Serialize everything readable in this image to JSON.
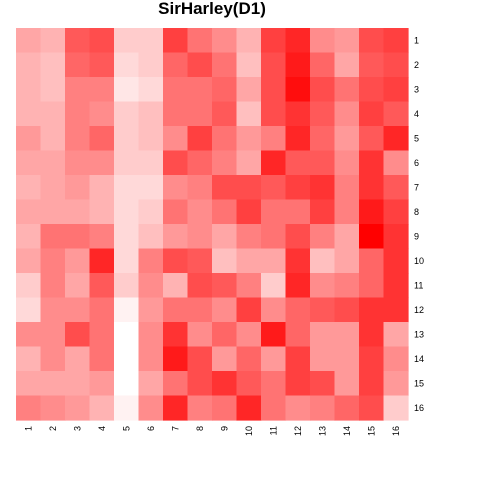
{
  "chart_data": {
    "type": "heatmap",
    "title": "SirHarley(D1)",
    "rows": [
      "1",
      "2",
      "3",
      "4",
      "5",
      "6",
      "7",
      "8",
      "9",
      "10",
      "11",
      "12",
      "13",
      "14",
      "15",
      "16"
    ],
    "columns": [
      "1",
      "2",
      "3",
      "4",
      "5",
      "6",
      "7",
      "8",
      "9",
      "10",
      "11",
      "12",
      "13",
      "14",
      "15",
      "16"
    ],
    "color_low": "#ffffff",
    "color_high": "#ff0000",
    "value_range": [
      0,
      1
    ],
    "values": [
      [
        0.35,
        0.3,
        0.65,
        0.7,
        0.2,
        0.2,
        0.75,
        0.55,
        0.45,
        0.3,
        0.75,
        0.85,
        0.45,
        0.4,
        0.7,
        0.75
      ],
      [
        0.3,
        0.25,
        0.6,
        0.65,
        0.15,
        0.2,
        0.6,
        0.7,
        0.55,
        0.25,
        0.7,
        0.9,
        0.6,
        0.35,
        0.65,
        0.7
      ],
      [
        0.3,
        0.25,
        0.5,
        0.5,
        0.1,
        0.15,
        0.55,
        0.55,
        0.6,
        0.35,
        0.7,
        0.95,
        0.7,
        0.55,
        0.7,
        0.75
      ],
      [
        0.3,
        0.3,
        0.5,
        0.45,
        0.2,
        0.25,
        0.55,
        0.55,
        0.65,
        0.25,
        0.7,
        0.8,
        0.65,
        0.45,
        0.75,
        0.65
      ],
      [
        0.4,
        0.3,
        0.5,
        0.6,
        0.2,
        0.25,
        0.45,
        0.75,
        0.55,
        0.4,
        0.5,
        0.85,
        0.6,
        0.4,
        0.65,
        0.85
      ],
      [
        0.35,
        0.35,
        0.45,
        0.45,
        0.2,
        0.2,
        0.7,
        0.6,
        0.5,
        0.35,
        0.85,
        0.65,
        0.65,
        0.45,
        0.8,
        0.45
      ],
      [
        0.3,
        0.35,
        0.4,
        0.3,
        0.15,
        0.15,
        0.45,
        0.5,
        0.7,
        0.7,
        0.65,
        0.75,
        0.8,
        0.5,
        0.8,
        0.65
      ],
      [
        0.35,
        0.35,
        0.35,
        0.3,
        0.15,
        0.2,
        0.55,
        0.45,
        0.55,
        0.75,
        0.55,
        0.55,
        0.75,
        0.5,
        0.9,
        0.75
      ],
      [
        0.3,
        0.55,
        0.55,
        0.5,
        0.15,
        0.25,
        0.4,
        0.45,
        0.35,
        0.5,
        0.55,
        0.7,
        0.5,
        0.35,
        1.0,
        0.8
      ],
      [
        0.35,
        0.5,
        0.4,
        0.85,
        0.15,
        0.5,
        0.7,
        0.65,
        0.25,
        0.35,
        0.35,
        0.8,
        0.25,
        0.35,
        0.6,
        0.8
      ],
      [
        0.2,
        0.5,
        0.35,
        0.65,
        0.2,
        0.45,
        0.3,
        0.7,
        0.65,
        0.5,
        0.2,
        0.85,
        0.45,
        0.5,
        0.6,
        0.8
      ],
      [
        0.15,
        0.45,
        0.45,
        0.55,
        0.05,
        0.4,
        0.55,
        0.55,
        0.45,
        0.75,
        0.45,
        0.6,
        0.65,
        0.7,
        0.8,
        0.8
      ],
      [
        0.45,
        0.45,
        0.7,
        0.55,
        0.0,
        0.45,
        0.8,
        0.45,
        0.6,
        0.45,
        0.9,
        0.6,
        0.4,
        0.4,
        0.8,
        0.35
      ],
      [
        0.3,
        0.45,
        0.35,
        0.55,
        0.0,
        0.45,
        0.9,
        0.7,
        0.4,
        0.6,
        0.4,
        0.75,
        0.4,
        0.4,
        0.75,
        0.45
      ],
      [
        0.35,
        0.35,
        0.35,
        0.4,
        0.0,
        0.35,
        0.55,
        0.7,
        0.8,
        0.65,
        0.55,
        0.75,
        0.7,
        0.4,
        0.75,
        0.4
      ],
      [
        0.5,
        0.45,
        0.4,
        0.3,
        0.05,
        0.45,
        0.85,
        0.5,
        0.55,
        0.85,
        0.55,
        0.45,
        0.5,
        0.6,
        0.7,
        0.2
      ]
    ]
  }
}
